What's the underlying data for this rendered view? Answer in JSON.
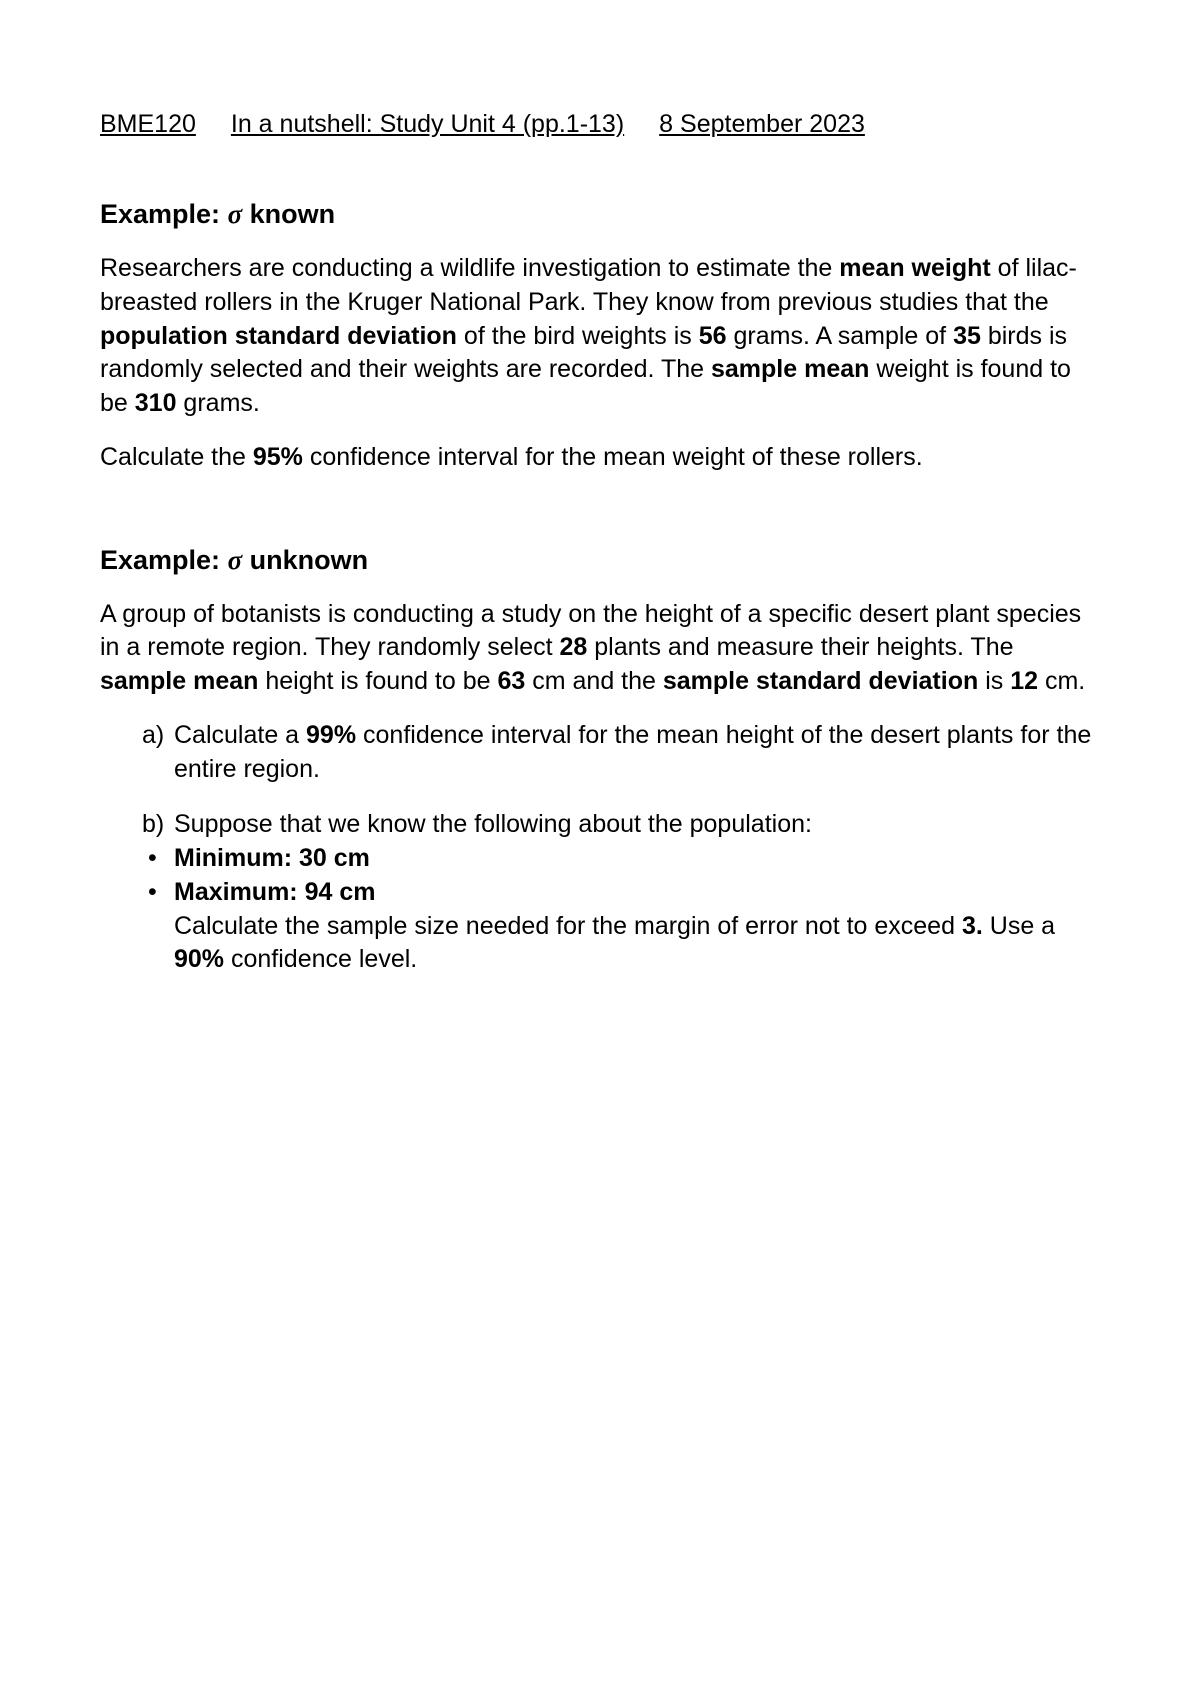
{
  "header": {
    "course": "BME120",
    "title": "In a nutshell: Study Unit 4 (pp.1-13)",
    "date": "8 September 2023"
  },
  "section1": {
    "title_prefix": "Example: ",
    "title_sigma": "σ",
    "title_suffix": " known",
    "p1_parts": {
      "t1": "Researchers are conducting a wildlife investigation to estimate the ",
      "b1": "mean weight",
      "t2": " of lilac-breasted rollers in the Kruger National Park. They know from previous studies that the ",
      "b2": "population standard deviation",
      "t3": " of the bird weights is ",
      "b3": "56",
      "t4": " grams. A sample of ",
      "b4": "35",
      "t5": " birds is randomly selected and their weights are recorded. The ",
      "b5": "sample mean",
      "t6": " weight is found to be ",
      "b6": "310",
      "t7": " grams."
    },
    "p2_parts": {
      "t1": "Calculate the ",
      "b1": "95%",
      "t2": " confidence interval for the mean weight of these rollers."
    }
  },
  "section2": {
    "title_prefix": "Example: ",
    "title_sigma": "σ",
    "title_suffix": " unknown",
    "p1_parts": {
      "t1": "A group of botanists is conducting a study on the height of a specific desert plant species in a remote region. They randomly select ",
      "b1": "28",
      "t2": " plants and measure their heights. The ",
      "b2": "sample mean",
      "t3": " height is found to be ",
      "b3": "63",
      "t4": " cm and the ",
      "b4": "sample standard deviation",
      "t5": " is ",
      "b5": "12",
      "t6": " cm."
    },
    "item_a": {
      "marker": "a)",
      "t1": "Calculate a ",
      "b1": "99%",
      "t2": " confidence interval for the mean height of the desert plants for the entire region."
    },
    "item_b": {
      "marker": "b)",
      "t1": "Suppose that we know the following about the population:"
    },
    "bullet1": {
      "marker": "•",
      "b1": "Minimum: 30 cm"
    },
    "bullet2": {
      "marker": "•",
      "b1": "Maximum: 94 cm"
    },
    "subtext": {
      "t1": "Calculate the sample size needed for the margin of error not to exceed ",
      "b1": "3.",
      "t2": " Use a ",
      "b2": "90%",
      "t3": " confidence level."
    }
  }
}
